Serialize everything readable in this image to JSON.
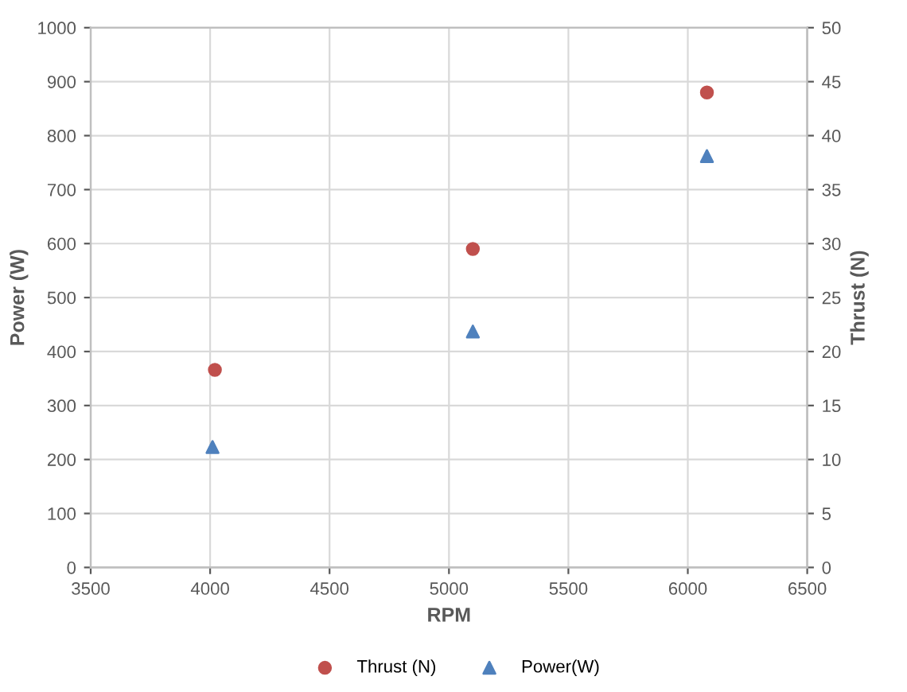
{
  "chart_data": {
    "type": "scatter",
    "xlabel": "RPM",
    "ylabel": "Power (W)",
    "y2label": "Thrust (N)",
    "xlim": [
      3500,
      6500
    ],
    "xticks": [
      3500,
      4000,
      4500,
      5000,
      5500,
      6000,
      6500
    ],
    "ylim": [
      0,
      1000
    ],
    "yticks": [
      0,
      100,
      200,
      300,
      400,
      500,
      600,
      700,
      800,
      900,
      1000
    ],
    "y2lim": [
      0,
      50
    ],
    "y2ticks": [
      0,
      5,
      10,
      15,
      20,
      25,
      30,
      35,
      40,
      45,
      50
    ],
    "grid": true,
    "legend": "bottom",
    "series": [
      {
        "name": "Thrust (N)",
        "color": "#c0504d",
        "marker": "circle",
        "axis": "y2",
        "x": [
          4020,
          5100,
          6080
        ],
        "values": [
          18.3,
          29.5,
          44
        ]
      },
      {
        "name": "Power(W)",
        "color": "#4f81bd",
        "marker": "triangle",
        "x": [
          4010,
          5100,
          6080
        ],
        "values": [
          223,
          437,
          762
        ]
      }
    ]
  }
}
